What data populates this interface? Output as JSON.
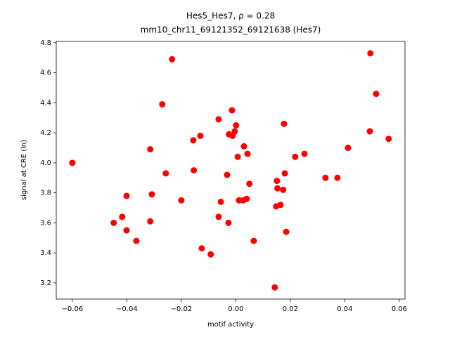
{
  "chart_data": {
    "type": "scatter",
    "title": "Hes5_Hes7, ρ = 0.28",
    "subtitle": "mm10_chr11_69121352_69121638 (Hes7)",
    "x_label": "motif activity",
    "y_label": "signal at CRE (ln)",
    "color": "#ff0000",
    "grid": false,
    "xlim": [
      -0.0659,
      0.0621
    ],
    "ylim": [
      3.092,
      4.809
    ],
    "xticks": [
      {
        "value": -0.06,
        "label": "−0.06"
      },
      {
        "value": -0.04,
        "label": "−0.04"
      },
      {
        "value": -0.02,
        "label": "−0.02"
      },
      {
        "value": 0,
        "label": "0.00"
      },
      0.02,
      0.04,
      0.06
    ],
    "yticks": [
      3.2,
      3.4,
      3.6,
      3.8,
      {
        "value": 4.0,
        "label": "4.0"
      },
      4.2,
      4.4,
      4.6,
      4.8
    ],
    "x": [
      -0.06,
      -0.0234,
      0.0494,
      0.0515,
      -0.027,
      -0.0014,
      -0.0063,
      0.0177,
      0.0001,
      0.0492,
      -0.0004,
      -0.0025,
      -0.0012,
      -0.013,
      -0.0156,
      0.0561,
      0.003,
      -0.0314,
      0.0412,
      0.0043,
      0.0252,
      0.0007,
      0.0218,
      -0.0257,
      -0.0154,
      0.018,
      -0.0032,
      0.0329,
      0.0373,
      0.0151,
      0.005,
      0.0153,
      0.0174,
      -0.0401,
      -0.0308,
      -0.02,
      0.004,
      0.0027,
      0.0012,
      -0.0055,
      0.0164,
      0.0148,
      -0.0063,
      -0.0417,
      -0.0448,
      -0.0314,
      -0.0027,
      -0.0401,
      0.0185,
      -0.0365,
      0.0066,
      -0.0125,
      -0.0092,
      0.0143
    ],
    "values": [
      4.0,
      4.69,
      4.73,
      4.46,
      4.39,
      4.35,
      4.29,
      4.26,
      4.25,
      4.21,
      4.21,
      4.19,
      4.18,
      4.18,
      4.15,
      4.16,
      4.11,
      4.09,
      4.1,
      4.06,
      4.06,
      4.04,
      4.04,
      3.93,
      3.95,
      3.93,
      3.92,
      3.9,
      3.9,
      3.88,
      3.86,
      3.83,
      3.82,
      3.78,
      3.79,
      3.75,
      3.76,
      3.75,
      3.75,
      3.74,
      3.72,
      3.71,
      3.64,
      3.64,
      3.6,
      3.61,
      3.6,
      3.55,
      3.54,
      3.48,
      3.48,
      3.43,
      3.39,
      3.17
    ]
  }
}
